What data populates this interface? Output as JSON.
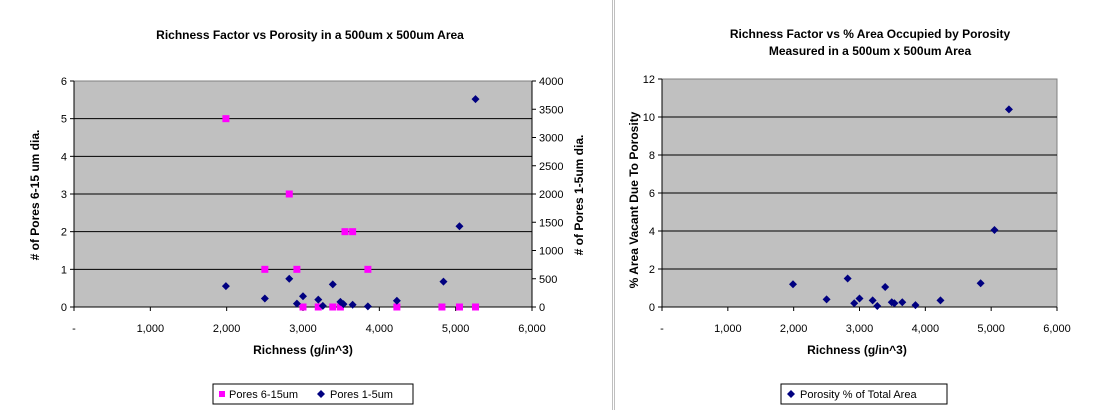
{
  "chart_data": [
    {
      "type": "scatter",
      "title": "Richness Factor vs Porosity in a 500um x 500um Area",
      "xlabel": "Richness (g/in^3)",
      "ylabel": "# of Pores 6-15 um dia.",
      "y2label": "# of Pores 1-5um dia.",
      "xlim": [
        0,
        6000
      ],
      "ylim": [
        0,
        6
      ],
      "y2lim": [
        0,
        4000
      ],
      "x_ticks": [
        "-",
        "1,000",
        "2,000",
        "3,000",
        "4,000",
        "5,000",
        "6,000"
      ],
      "y_ticks": [
        "0",
        "1",
        "2",
        "3",
        "4",
        "5",
        "6"
      ],
      "y2_ticks": [
        "0",
        "500",
        "1000",
        "1500",
        "2000",
        "2500",
        "3000",
        "3500",
        "4000"
      ],
      "grid": "horizontal",
      "plot_background": "#c0c0c0",
      "legend_position": "bottom",
      "series": [
        {
          "name": "Pores 6-15um",
          "axis": "left",
          "marker": "square",
          "color": "#ff00ff",
          "points": [
            [
              1990,
              5
            ],
            [
              2500,
              1
            ],
            [
              2820,
              3
            ],
            [
              2920,
              1
            ],
            [
              3000,
              0
            ],
            [
              3200,
              0
            ],
            [
              3390,
              0
            ],
            [
              3490,
              0
            ],
            [
              3550,
              2
            ],
            [
              3650,
              2
            ],
            [
              3850,
              1
            ],
            [
              4230,
              0
            ],
            [
              4820,
              0
            ],
            [
              5050,
              0
            ],
            [
              5260,
              0
            ]
          ]
        },
        {
          "name": "Pores 1-5um",
          "axis": "right",
          "marker": "diamond",
          "color": "#000080",
          "points": [
            [
              1990,
              370
            ],
            [
              2500,
              150
            ],
            [
              2820,
              500
            ],
            [
              2920,
              60
            ],
            [
              3000,
              190
            ],
            [
              3200,
              130
            ],
            [
              3260,
              20
            ],
            [
              3390,
              400
            ],
            [
              3490,
              90
            ],
            [
              3530,
              50
            ],
            [
              3650,
              40
            ],
            [
              3850,
              10
            ],
            [
              4230,
              110
            ],
            [
              4840,
              450
            ],
            [
              5050,
              1430
            ],
            [
              5260,
              3680
            ]
          ]
        }
      ]
    },
    {
      "type": "scatter",
      "title": "Richness Factor vs % Area Occupied by Porosity",
      "subtitle": "Measured in a 500um x 500um Area",
      "xlabel": "Richness (g/in^3)",
      "ylabel": "% Area Vacant Due To Porosity",
      "xlim": [
        0,
        6000
      ],
      "ylim": [
        0,
        12
      ],
      "x_ticks": [
        "-",
        "1,000",
        "2,000",
        "3,000",
        "4,000",
        "5,000",
        "6,000"
      ],
      "y_ticks": [
        "0",
        "2",
        "4",
        "6",
        "8",
        "10",
        "12"
      ],
      "grid": "horizontal",
      "plot_background": "#c0c0c0",
      "legend_position": "bottom",
      "series": [
        {
          "name": "Porosity % of Total Area",
          "marker": "diamond",
          "color": "#000080",
          "points": [
            [
              1990,
              1.2
            ],
            [
              2500,
              0.4
            ],
            [
              2820,
              1.5
            ],
            [
              2920,
              0.2
            ],
            [
              3000,
              0.45
            ],
            [
              3200,
              0.35
            ],
            [
              3270,
              0.05
            ],
            [
              3390,
              1.05
            ],
            [
              3490,
              0.25
            ],
            [
              3530,
              0.2
            ],
            [
              3650,
              0.25
            ],
            [
              3850,
              0.1
            ],
            [
              4230,
              0.35
            ],
            [
              4840,
              1.25
            ],
            [
              5050,
              4.05
            ],
            [
              5270,
              10.4
            ]
          ]
        }
      ]
    }
  ]
}
